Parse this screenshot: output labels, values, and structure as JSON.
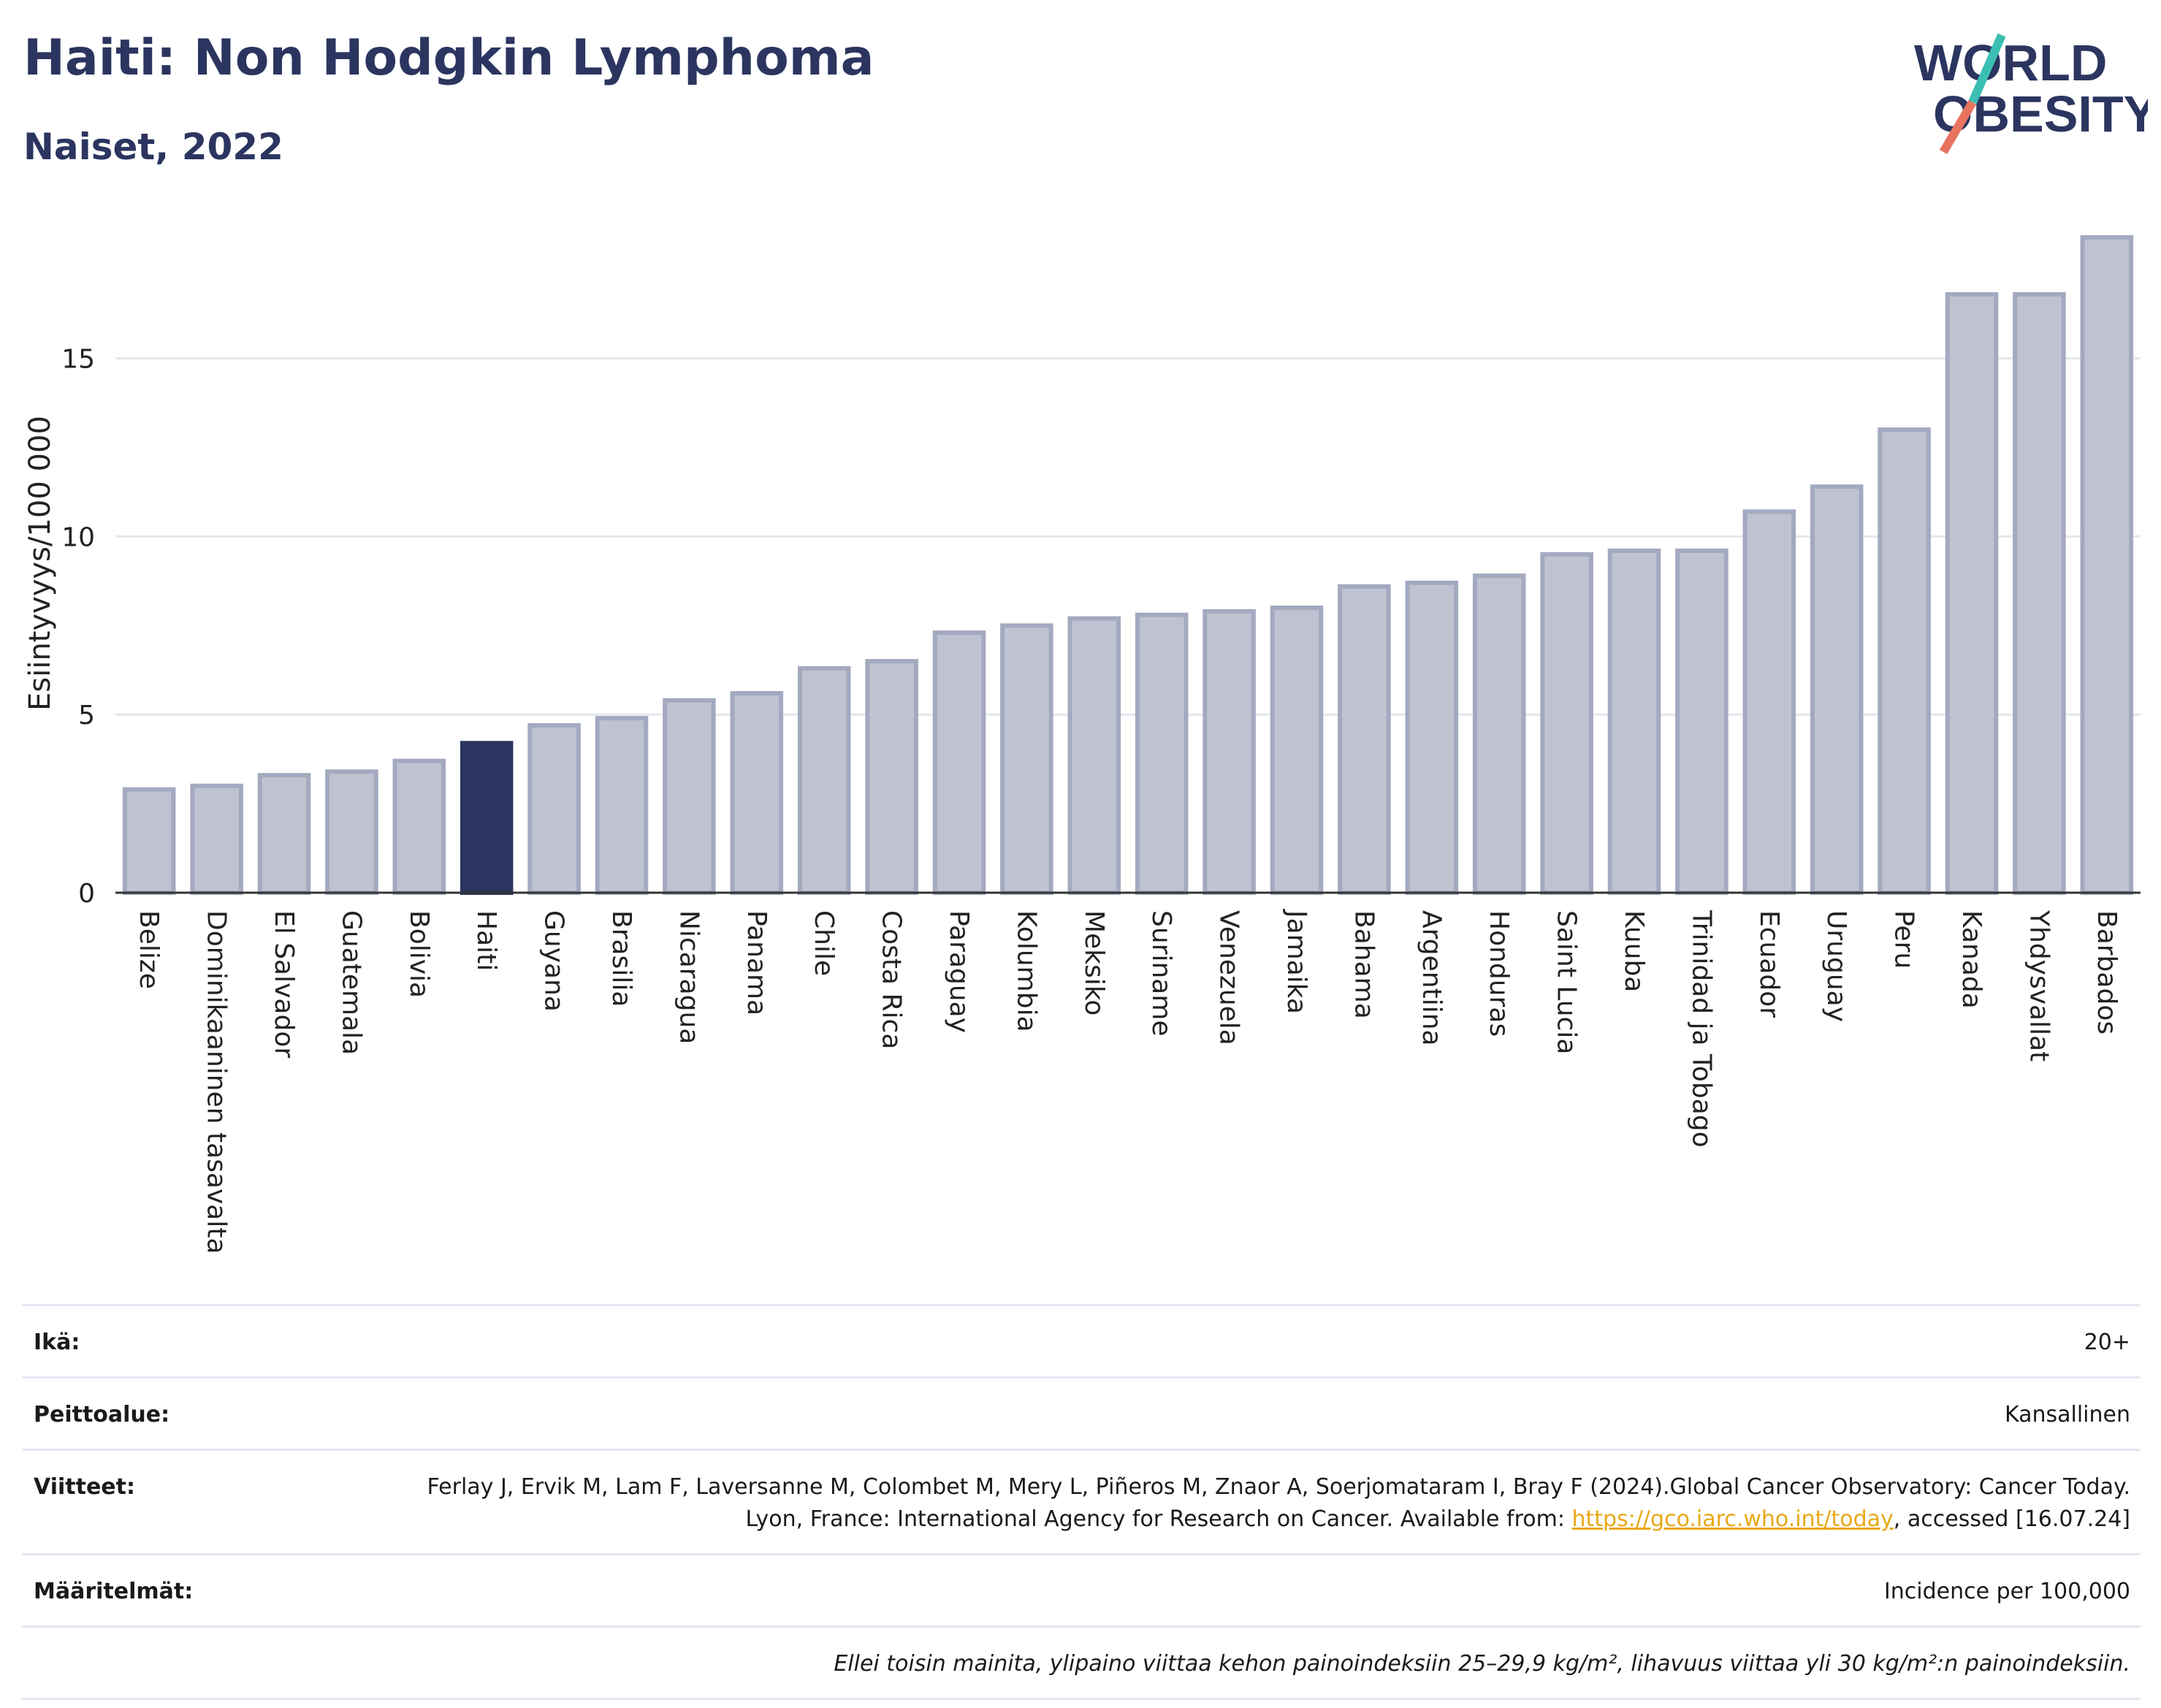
{
  "header": {
    "title": "Haiti: Non Hodgkin Lymphoma",
    "subtitle": "Naiset, 2022",
    "logo_line1": "WORLD",
    "logo_line2": "OBESITY"
  },
  "colors": {
    "title": "#2b3560",
    "bar_default": "#bfc3d1",
    "bar_default_border": "#a3a9bf",
    "bar_highlight": "#2b3560",
    "link": "#e8a817",
    "logo_teal": "#3bbfb3",
    "logo_coral": "#e8735f"
  },
  "chart_data": {
    "type": "bar",
    "ylabel": "Esiintyvyys/100 000",
    "ylim": [
      0,
      18.5
    ],
    "yticks": [
      0,
      5,
      10,
      15
    ],
    "grid": true,
    "highlight": "Haiti",
    "categories": [
      "Belize",
      "Dominikaaninen tasavalta",
      "El Salvador",
      "Guatemala",
      "Bolivia",
      "Haiti",
      "Guyana",
      "Brasilia",
      "Nicaragua",
      "Panama",
      "Chile",
      "Costa Rica",
      "Paraguay",
      "Kolumbia",
      "Meksiko",
      "Suriname",
      "Venezuela",
      "Jamaika",
      "Bahama",
      "Argentiina",
      "Honduras",
      "Saint Lucia",
      "Kuuba",
      "Trinidad ja Tobago",
      "Ecuador",
      "Uruguay",
      "Peru",
      "Kanada",
      "Yhdysvallat",
      "Barbados"
    ],
    "values": [
      2.9,
      3.0,
      3.3,
      3.4,
      3.7,
      4.2,
      4.7,
      4.9,
      5.4,
      5.6,
      6.3,
      6.5,
      7.3,
      7.5,
      7.7,
      7.8,
      7.9,
      8.0,
      8.6,
      8.7,
      8.9,
      9.5,
      9.6,
      9.6,
      10.7,
      11.4,
      13.0,
      16.8,
      16.8,
      18.4
    ]
  },
  "info": {
    "age_label": "Ikä:",
    "age_value": "20+",
    "coverage_label": "Peittoalue:",
    "coverage_value": "Kansallinen",
    "refs_label": "Viitteet:",
    "refs_text_1": "Ferlay J, Ervik M, Lam F, Laversanne M, Colombet M, Mery L, Piñeros M, Znaor A, Soerjomataram I, Bray F (2024).Global Cancer Observatory: Cancer Today. Lyon, France: International Agency for Research on Cancer. Available from: ",
    "refs_link": "https://gco.iarc.who.int/today",
    "refs_text_2": ", accessed [16.07.24]",
    "defs_label": "Määritelmät:",
    "defs_value": "Incidence per 100,000",
    "note": "Ellei toisin mainita, ylipaino viittaa kehon painoindeksiin 25–29,9 kg/m², lihavuus viittaa yli 30 kg/m²:n painoindeksiin."
  }
}
